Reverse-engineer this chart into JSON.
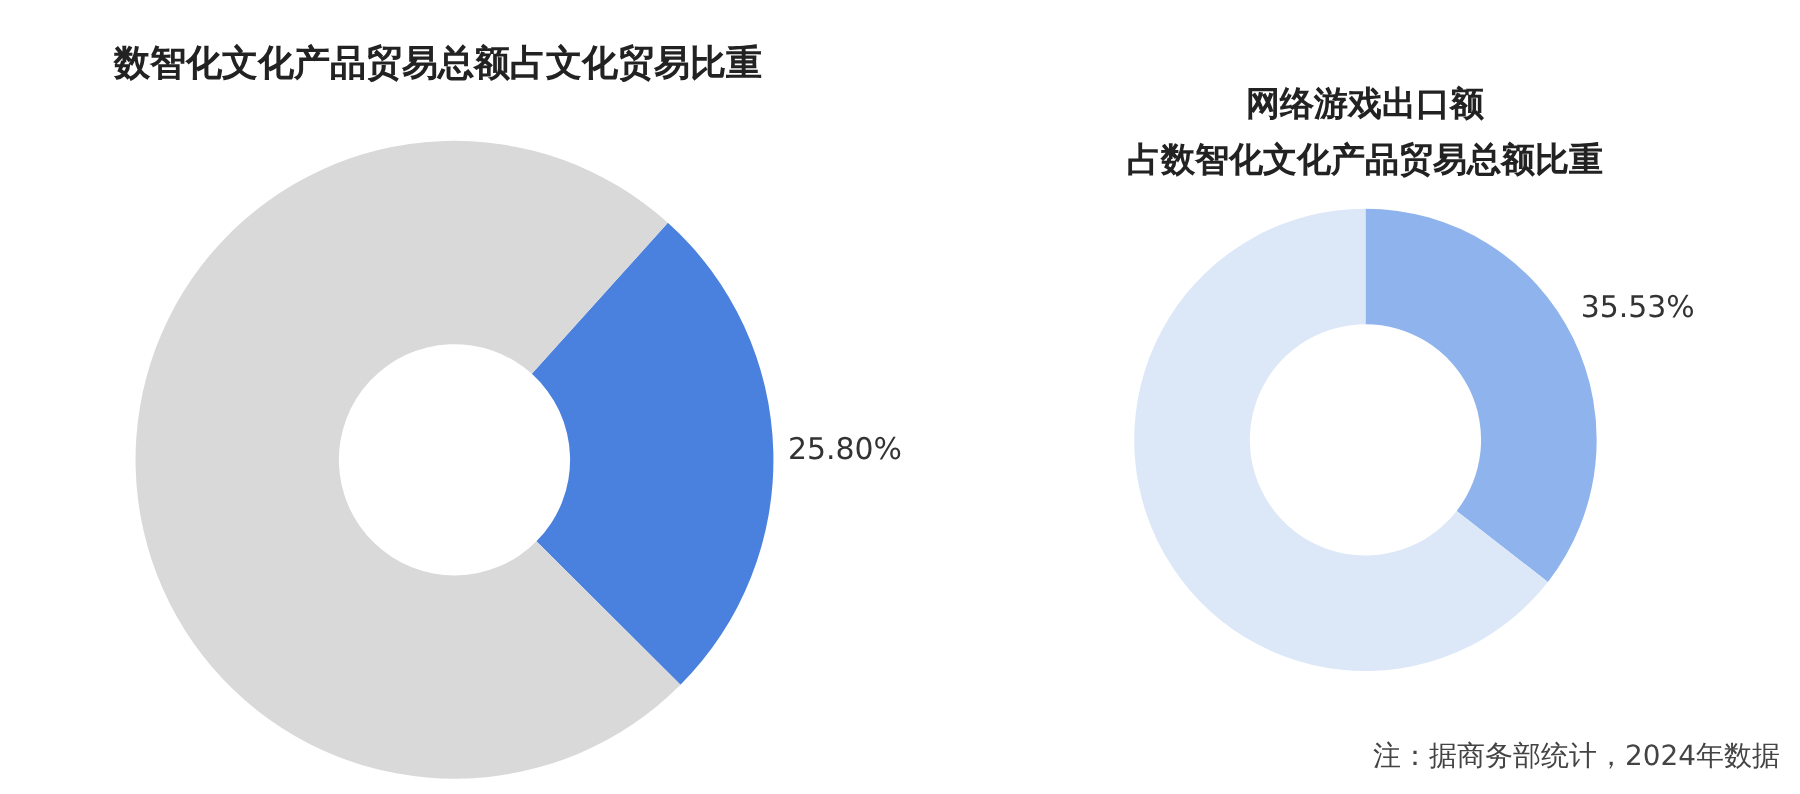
{
  "chart_data": [
    {
      "type": "donut",
      "title": "数智化文化产品贸易总额占文化贸易比重",
      "categories": [
        null,
        null
      ],
      "values": [
        25.8,
        74.2
      ],
      "colors": [
        "#4a80de",
        "#d9d9d9"
      ],
      "value_labels": [
        "25.80%",
        null
      ]
    },
    {
      "type": "donut",
      "title": "网络游戏出口额",
      "subtitle": "占数智化文化产品贸易总额比重",
      "categories": [
        null,
        null
      ],
      "values": [
        35.53,
        64.47
      ],
      "colors": [
        "#8fb3ec",
        "#dce8f8"
      ],
      "value_labels": [
        "35.53%",
        null
      ],
      "annotations": [
        "注：据商务部统计，2024年数据"
      ]
    }
  ]
}
